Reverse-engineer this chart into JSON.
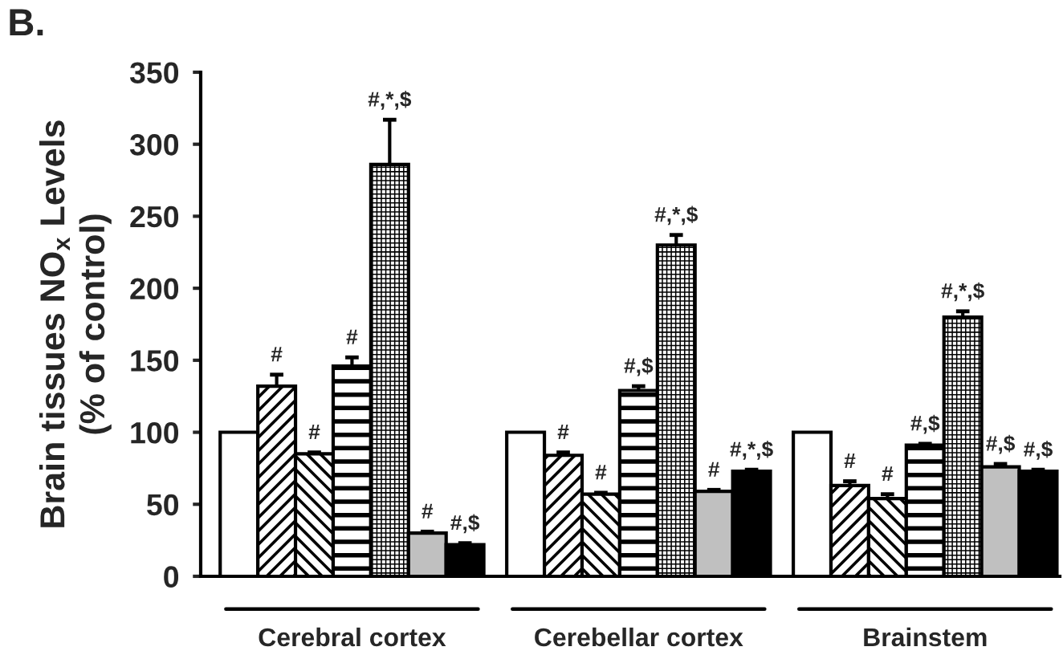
{
  "chart_data": {
    "type": "bar",
    "ylabel": "Brain tissues NO$_{x}$ Levels\n(% of control)",
    "annotations": [
      "B."
    ],
    "categories": [
      "Cerebral cortex",
      "Cerebellar cortex",
      "Brainstem"
    ],
    "ylim": [
      0,
      350
    ],
    "yticks": [
      0,
      50,
      100,
      150,
      200,
      250,
      300,
      350
    ],
    "series": [
      {
        "color": "#ffffff",
        "values": [
          100,
          100,
          100
        ],
        "errors": [
          null,
          null,
          null
        ],
        "value_labels": [
          null,
          null,
          null
        ]
      },
      {
        "color": "#000000",
        "values": [
          132,
          84,
          63
        ],
        "errors": [
          8,
          2,
          3
        ],
        "value_labels": [
          "#",
          "#",
          "#"
        ]
      },
      {
        "color": "#000000",
        "values": [
          85,
          57,
          54
        ],
        "errors": [
          1,
          1,
          3
        ],
        "value_labels": [
          "#",
          "#",
          "#"
        ]
      },
      {
        "color": "#000000",
        "values": [
          146,
          129,
          91
        ],
        "errors": [
          6,
          3,
          1
        ],
        "value_labels": [
          "#",
          "#,$",
          "#,$"
        ]
      },
      {
        "color": "#000000",
        "values": [
          286,
          230,
          180
        ],
        "errors": [
          31,
          7,
          4
        ],
        "value_labels": [
          "#,*,$",
          "#,*,$",
          "#,*,$"
        ]
      },
      {
        "color": "#c0c0c0",
        "values": [
          30,
          59,
          76
        ],
        "errors": [
          1,
          1,
          2
        ],
        "value_labels": [
          "#",
          "#",
          "#,$"
        ]
      },
      {
        "color": "#000000",
        "values": [
          22,
          73,
          73
        ],
        "errors": [
          1,
          1,
          1
        ],
        "value_labels": [
          "#,$",
          "#,*,$",
          "#,$"
        ]
      }
    ]
  }
}
